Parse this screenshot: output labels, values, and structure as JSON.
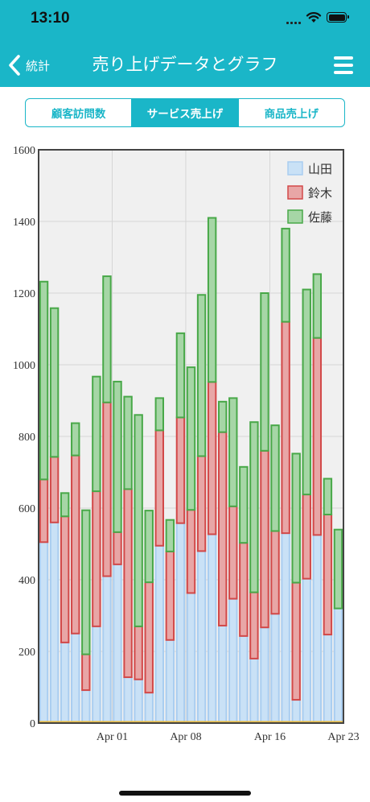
{
  "status": {
    "time": "13:10"
  },
  "nav": {
    "back_label": "統計",
    "title": "売り上げデータとグラフ"
  },
  "tabs": [
    {
      "label": "顧客訪問数",
      "active": false
    },
    {
      "label": "サービス売上げ",
      "active": true
    },
    {
      "label": "商品売上げ",
      "active": false
    }
  ],
  "colors": {
    "header": "#1ab6c8"
  },
  "chart_data": {
    "type": "bar",
    "stacked": true,
    "ylim": [
      0,
      1600
    ],
    "yticks": [
      0,
      200,
      400,
      600,
      800,
      1000,
      1200,
      1400,
      1600
    ],
    "xlabels": [
      {
        "label": "Apr 01",
        "index": 7
      },
      {
        "label": "Apr 08",
        "index": 14
      },
      {
        "label": "Apr 16",
        "index": 22
      },
      {
        "label": "Apr 23",
        "index": 29
      }
    ],
    "grid": true,
    "legend_position": "top-right",
    "series": [
      {
        "name": "山田",
        "color": "#c9e1f6",
        "stroke": "#a9cdf0",
        "values": [
          505,
          560,
          225,
          250,
          92,
          270,
          410,
          443,
          128,
          122,
          85,
          495,
          232,
          558,
          363,
          480,
          527,
          272,
          347,
          243,
          180,
          267,
          305,
          530,
          65,
          403,
          525,
          247,
          320
        ]
      },
      {
        "name": "鈴木",
        "color": "#e8a6a6",
        "stroke": "#d24848",
        "values": [
          175,
          183,
          352,
          497,
          100,
          377,
          485,
          90,
          525,
          148,
          308,
          322,
          247,
          295,
          232,
          265,
          425,
          540,
          258,
          260,
          185,
          493,
          231,
          590,
          327,
          235,
          550,
          335,
          0
        ]
      },
      {
        "name": "佐藤",
        "color": "#a6d6a6",
        "stroke": "#48a848",
        "values": [
          552,
          415,
          65,
          90,
          402,
          320,
          352,
          420,
          258,
          590,
          200,
          90,
          88,
          235,
          398,
          450,
          458,
          85,
          302,
          212,
          475,
          440,
          295,
          260,
          360,
          572,
          178,
          100,
          220
        ]
      }
    ]
  }
}
